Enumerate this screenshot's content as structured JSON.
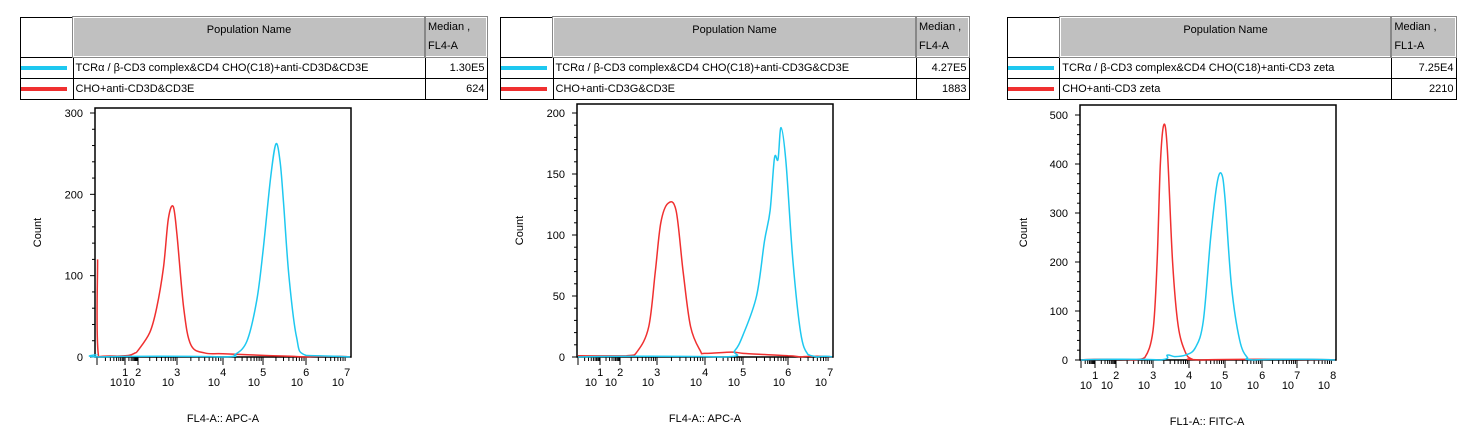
{
  "colors": {
    "series1": "#1ec8f0",
    "series2": "#f03030"
  },
  "legends": [
    {
      "header_name": "Population Name",
      "header_median": [
        "Median ,",
        "FL4-A"
      ],
      "rows": [
        {
          "name": "TCRα / β-CD3 complex&CD4 CHO(C18)+anti-CD3D&CD3E",
          "median": "1.30E5",
          "color": "#1ec8f0"
        },
        {
          "name": "CHO+anti-CD3D&CD3E",
          "median": "624",
          "color": "#f03030"
        }
      ]
    },
    {
      "header_name": "Population Name",
      "header_median": [
        "Median ,",
        "FL4-A"
      ],
      "rows": [
        {
          "name": "TCRα / β-CD3 complex&CD4 CHO(C18)+anti-CD3G&CD3E",
          "median": "4.27E5",
          "color": "#1ec8f0"
        },
        {
          "name": "CHO+anti-CD3G&CD3E",
          "median": "1883",
          "color": "#f03030"
        }
      ]
    },
    {
      "header_name": "Population Name",
      "header_median": [
        "Median ,",
        "FL1-A"
      ],
      "rows": [
        {
          "name": "TCRα / β-CD3 complex&CD4 CHO(C18)+anti-CD3 zeta",
          "median": "7.25E4",
          "color": "#1ec8f0"
        },
        {
          "name": "CHO+anti-CD3 zeta",
          "median": "2210",
          "color": "#f03030"
        }
      ]
    }
  ],
  "chart_data": [
    {
      "type": "line",
      "xscale": "log",
      "xlabel": "FL4-A:: APC-A",
      "ylabel": "Count",
      "ylim": [
        0,
        300
      ],
      "yticks": [
        0,
        100,
        200,
        300
      ],
      "xtick_exponents": [
        1,
        2,
        3,
        4,
        5,
        6,
        7
      ],
      "grid": false,
      "series": [
        {
          "color": "#f03030",
          "points": [
            [
              1.05,
              120
            ],
            [
              1.15,
              0
            ],
            [
              5,
              1
            ],
            [
              20,
              2
            ],
            [
              60,
              5
            ],
            [
              100,
              8
            ],
            [
              200,
              30
            ],
            [
              300,
              60
            ],
            [
              450,
              110
            ],
            [
              600,
              170
            ],
            [
              800,
              185
            ],
            [
              1000,
              150
            ],
            [
              1400,
              60
            ],
            [
              2000,
              15
            ],
            [
              4000,
              5
            ],
            [
              10000,
              4
            ],
            [
              100000,
              2
            ],
            [
              1000000,
              0
            ],
            [
              20000000,
              0
            ]
          ]
        },
        {
          "color": "#1ec8f0",
          "points": [
            [
              1,
              3
            ],
            [
              1.2,
              0
            ],
            [
              10000,
              0
            ],
            [
              20000,
              3
            ],
            [
              40000,
              20
            ],
            [
              70000,
              70
            ],
            [
              100000,
              130
            ],
            [
              150000,
              220
            ],
            [
              200000,
              262
            ],
            [
              250000,
              240
            ],
            [
              300000,
              190
            ],
            [
              400000,
              100
            ],
            [
              600000,
              25
            ],
            [
              1000000,
              2
            ],
            [
              20000000,
              0
            ]
          ]
        }
      ]
    },
    {
      "type": "line",
      "xscale": "log",
      "xlabel": "FL4-A:: APC-A",
      "ylabel": "Count",
      "ylim": [
        0,
        200
      ],
      "yticks": [
        0,
        50,
        100,
        150,
        200
      ],
      "xtick_exponents": [
        1,
        2,
        3,
        4,
        5,
        6,
        7
      ],
      "grid": false,
      "series": [
        {
          "color": "#f03030",
          "points": [
            [
              1,
              1
            ],
            [
              150,
              1
            ],
            [
              300,
              5
            ],
            [
              600,
              25
            ],
            [
              900,
              70
            ],
            [
              1200,
              110
            ],
            [
              1700,
              126
            ],
            [
              2500,
              120
            ],
            [
              3500,
              70
            ],
            [
              5000,
              25
            ],
            [
              8000,
              5
            ],
            [
              10000,
              3
            ],
            [
              50000,
              4
            ],
            [
              100000,
              3
            ],
            [
              300000,
              2
            ],
            [
              1000000,
              1
            ],
            [
              2000000,
              0
            ],
            [
              20000000,
              0
            ]
          ]
        },
        {
          "color": "#1ec8f0",
          "points": [
            [
              1,
              0
            ],
            [
              30000,
              0
            ],
            [
              60000,
              5
            ],
            [
              100000,
              18
            ],
            [
              200000,
              50
            ],
            [
              300000,
              95
            ],
            [
              400000,
              120
            ],
            [
              500000,
              163
            ],
            [
              600000,
              162
            ],
            [
              700000,
              188
            ],
            [
              900000,
              160
            ],
            [
              1300000,
              80
            ],
            [
              2000000,
              20
            ],
            [
              3000000,
              2
            ],
            [
              5000000,
              0
            ],
            [
              20000000,
              0
            ]
          ]
        }
      ]
    },
    {
      "type": "line",
      "xscale": "log",
      "xlabel": "FL1-A:: FITC-A",
      "ylabel": "Count",
      "ylim": [
        0,
        500
      ],
      "yticks": [
        0,
        100,
        200,
        300,
        400,
        500
      ],
      "xtick_exponents": [
        1,
        2,
        3,
        4,
        5,
        6,
        7,
        8
      ],
      "grid": false,
      "series": [
        {
          "color": "#f03030",
          "points": [
            [
              1,
              0
            ],
            [
              300,
              0
            ],
            [
              600,
              5
            ],
            [
              1000,
              60
            ],
            [
              1300,
              200
            ],
            [
              1600,
              400
            ],
            [
              2000,
              480
            ],
            [
              2500,
              430
            ],
            [
              3500,
              200
            ],
            [
              5000,
              70
            ],
            [
              8000,
              15
            ],
            [
              12000,
              2
            ],
            [
              20000,
              0
            ],
            [
              200000000,
              0
            ]
          ]
        },
        {
          "color": "#1ec8f0",
          "points": [
            [
              1,
              0
            ],
            [
              1500,
              0
            ],
            [
              2500,
              10
            ],
            [
              4000,
              7
            ],
            [
              8000,
              10
            ],
            [
              15000,
              25
            ],
            [
              25000,
              80
            ],
            [
              40000,
              250
            ],
            [
              60000,
              360
            ],
            [
              80000,
              380
            ],
            [
              100000,
              330
            ],
            [
              150000,
              150
            ],
            [
              250000,
              40
            ],
            [
              400000,
              5
            ],
            [
              600000,
              0
            ],
            [
              200000000,
              0
            ]
          ]
        }
      ]
    }
  ]
}
